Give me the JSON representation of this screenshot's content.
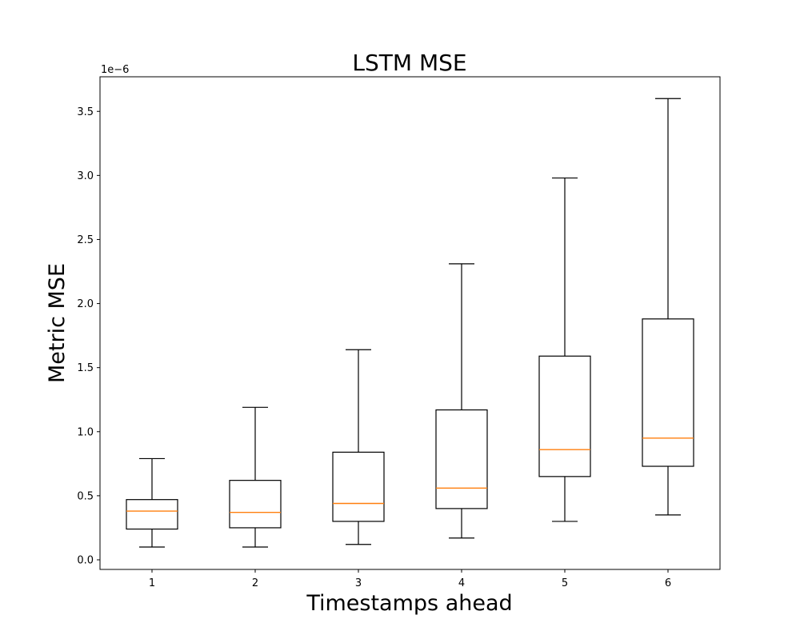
{
  "chart_data": {
    "type": "box",
    "title": "LSTM MSE",
    "xlabel": "Timestamps ahead",
    "ylabel": "Metric MSE",
    "y_offset_label": "1e−6",
    "y_scale_factor": 1e-06,
    "categories": [
      "1",
      "2",
      "3",
      "4",
      "5",
      "6"
    ],
    "boxes": [
      {
        "whisker_low": 0.1,
        "q1": 0.24,
        "median": 0.38,
        "q3": 0.47,
        "whisker_high": 0.79
      },
      {
        "whisker_low": 0.1,
        "q1": 0.25,
        "median": 0.37,
        "q3": 0.62,
        "whisker_high": 1.19
      },
      {
        "whisker_low": 0.12,
        "q1": 0.3,
        "median": 0.44,
        "q3": 0.84,
        "whisker_high": 1.64
      },
      {
        "whisker_low": 0.17,
        "q1": 0.4,
        "median": 0.56,
        "q3": 1.17,
        "whisker_high": 2.31
      },
      {
        "whisker_low": 0.3,
        "q1": 0.65,
        "median": 0.86,
        "q3": 1.59,
        "whisker_high": 2.98
      },
      {
        "whisker_low": 0.35,
        "q1": 0.73,
        "median": 0.95,
        "q3": 1.88,
        "whisker_high": 3.6
      }
    ],
    "y_ticks": [
      "0.0",
      "0.5",
      "1.0",
      "1.5",
      "2.0",
      "2.5",
      "3.0",
      "3.5"
    ],
    "ylim": [
      -0.075,
      3.77
    ],
    "grid": false,
    "legend": "none",
    "colors": {
      "box": "#000000",
      "median": "#ff7f0e"
    }
  }
}
